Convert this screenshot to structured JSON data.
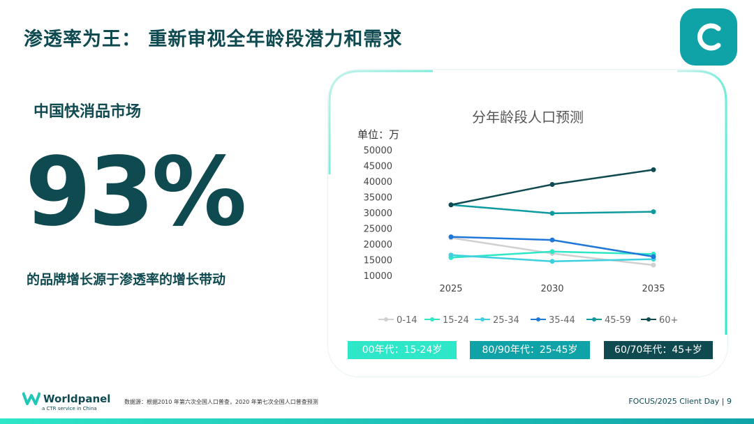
{
  "slide": {
    "title": "渗透率为王： 重新审视全年龄段潜力和需求",
    "subtitle": "中国快消品市场",
    "big_value": "93%",
    "caption": "的品牌增长源于渗透率的增长带动"
  },
  "chart_data": {
    "type": "line",
    "title": "分年龄段人口预测",
    "unit": "单位：万",
    "x": [
      "2025",
      "2030",
      "2035"
    ],
    "ylim": [
      10000,
      50000
    ],
    "yticks": [
      "50000",
      "45000",
      "40000",
      "35000",
      "30000",
      "25000",
      "20000",
      "15000",
      "10000"
    ],
    "grid": false,
    "legend": "bottom",
    "series": [
      {
        "name": "0-14",
        "color": "#d0d0d0",
        "values": [
          22000,
          17000,
          13300
        ]
      },
      {
        "name": "15-24",
        "color": "#2ee6c8",
        "values": [
          15700,
          17600,
          16800
        ]
      },
      {
        "name": "25-34",
        "color": "#3fd0e0",
        "values": [
          16500,
          14500,
          15200
        ]
      },
      {
        "name": "35-44",
        "color": "#1f78d8",
        "values": [
          22300,
          21300,
          16000
        ]
      },
      {
        "name": "45-59",
        "color": "#0f9aa0",
        "values": [
          32500,
          29800,
          30300
        ]
      },
      {
        "name": "60+",
        "color": "#0f4a50",
        "values": [
          32500,
          39000,
          43700
        ]
      }
    ]
  },
  "badges": [
    {
      "label": "00年代：15-24岁",
      "color": "#2ee6c8"
    },
    {
      "label": "80/90年代：25-45岁",
      "color": "#0fa3a8"
    },
    {
      "label": "60/70年代：45+岁",
      "color": "#0f4a50"
    }
  ],
  "footer": {
    "brand": "Worldpanel",
    "tagline": "a CTR service in China",
    "source": "数据源：根据2010 年第六次全国人口普查，2020 年第七次全国人口普查预测",
    "page": "FOCUS/2025 Client Day | 9"
  },
  "colors": {
    "primary": "#0f4a50",
    "accent": "#0fa3a8",
    "mint": "#2ee6c8"
  }
}
